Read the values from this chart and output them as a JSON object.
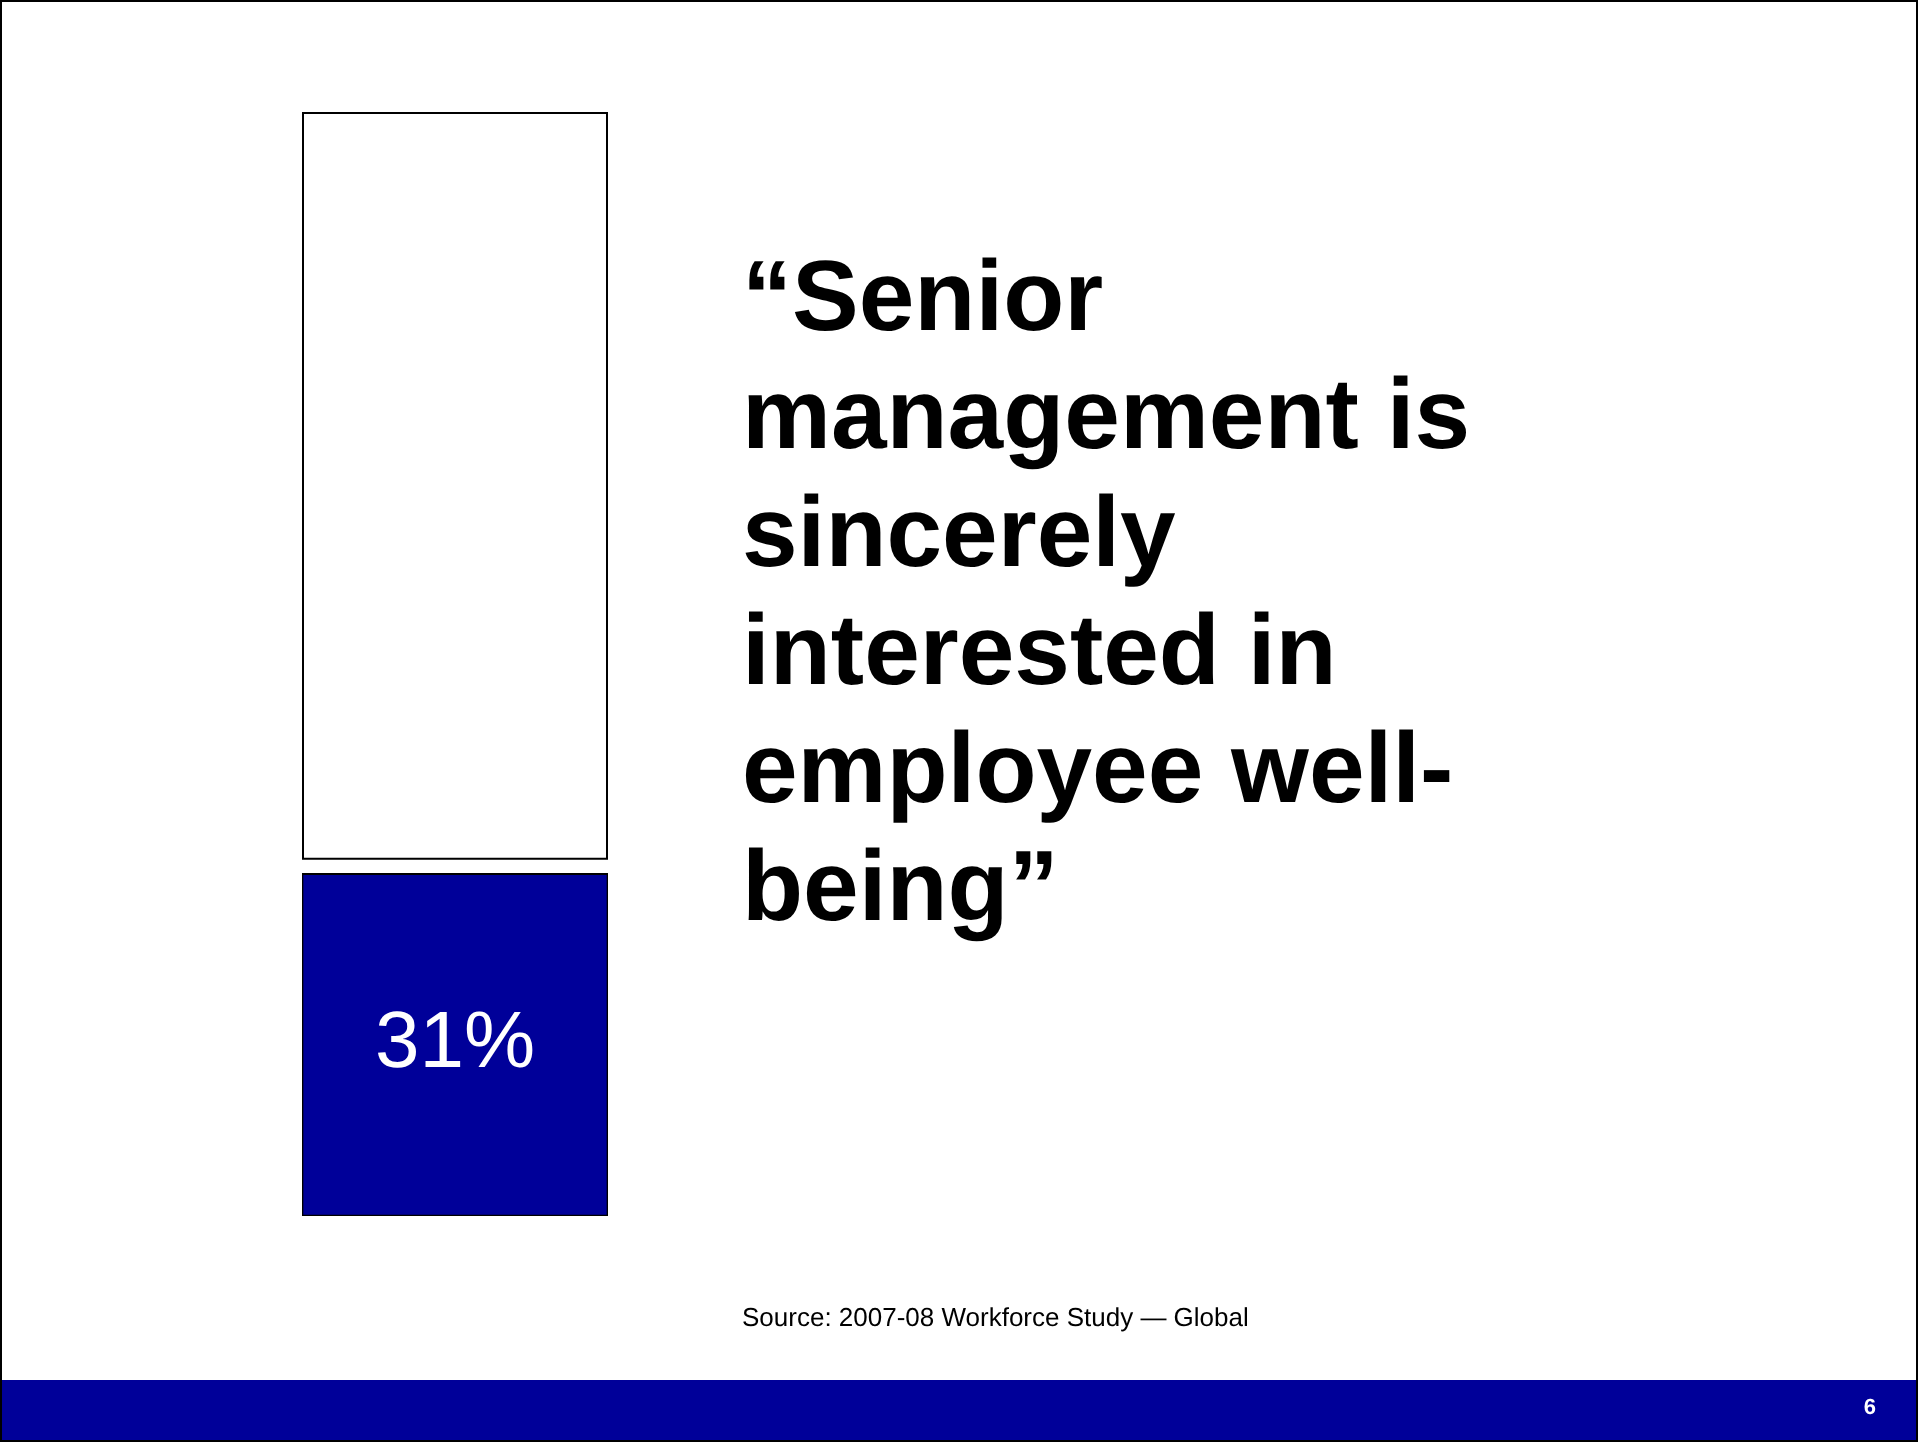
{
  "chart_data": {
    "type": "bar",
    "title": "“Senior management is sincerely interested in employee well-being”",
    "categories": [
      null
    ],
    "ylim": [
      0,
      100
    ],
    "series": [
      {
        "color": "#000099",
        "values": [
          31
        ],
        "value_labels": [
          "31%"
        ]
      }
    ],
    "annotations": [
      "Source: 2007-08 Workforce Study — Global",
      "6"
    ]
  }
}
